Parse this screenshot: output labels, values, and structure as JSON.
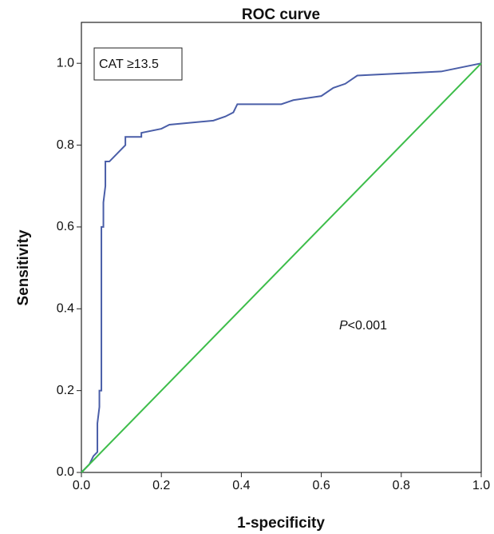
{
  "chart_data": {
    "type": "line",
    "title": "ROC curve",
    "x_label": "1-specificity",
    "y_label": "Sensitivity",
    "annotations": [
      "CAT ≥13.5",
      "P",
      "<0.001"
    ],
    "xlim": [
      0,
      1
    ],
    "ylim": [
      0,
      1.1
    ],
    "xticks": [
      {
        "value": 0,
        "label": "0.0"
      },
      0.2,
      0.4,
      0.6,
      0.8,
      {
        "value": 1,
        "label": "1.0"
      }
    ],
    "yticks": [
      {
        "value": 0,
        "label": "0.0"
      },
      0.2,
      0.4,
      0.6,
      0.8,
      {
        "value": 1,
        "label": "1.0"
      }
    ],
    "series": [
      {
        "color": "#4a5ea8",
        "x": [
          0,
          0.01,
          0.02,
          0.03,
          0.04,
          0.04,
          0.045,
          0.045,
          0.05,
          0.05,
          0.055,
          0.055,
          0.06,
          0.06,
          0.07,
          0.08,
          0.09,
          0.1,
          0.11,
          0.11,
          0.15,
          0.15,
          0.2,
          0.22,
          0.33,
          0.36,
          0.38,
          0.39,
          0.5,
          0.53,
          0.6,
          0.63,
          0.66,
          0.69,
          0.9,
          0.95,
          1
        ],
        "values": [
          0,
          0.01,
          0.02,
          0.04,
          0.05,
          0.12,
          0.16,
          0.2,
          0.2,
          0.6,
          0.6,
          0.66,
          0.7,
          0.76,
          0.76,
          0.77,
          0.78,
          0.79,
          0.8,
          0.82,
          0.82,
          0.83,
          0.84,
          0.85,
          0.86,
          0.87,
          0.88,
          0.9,
          0.9,
          0.91,
          0.92,
          0.94,
          0.95,
          0.97,
          0.98,
          0.99,
          1
        ]
      },
      {
        "color": "#3dbd4a",
        "x": [
          0,
          1
        ],
        "values": [
          0,
          1
        ]
      }
    ]
  }
}
